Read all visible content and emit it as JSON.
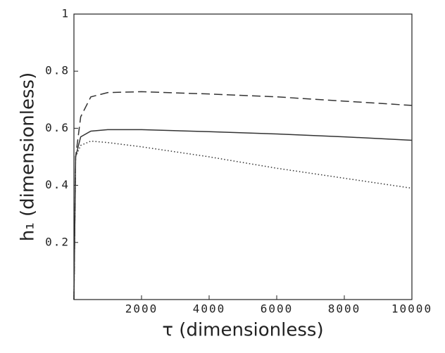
{
  "chart_data": {
    "type": "line",
    "x_label": "τ (dimensionless)",
    "y_label": "h₁ (dimensionless)",
    "x": [
      0,
      50,
      200,
      500,
      1000,
      2000,
      4000,
      6000,
      8000,
      10000
    ],
    "series": [
      {
        "color": "#333333",
        "line_style": "dashed",
        "values": [
          0,
          0.5,
          0.64,
          0.71,
          0.725,
          0.728,
          0.72,
          0.71,
          0.695,
          0.68
        ]
      },
      {
        "color": "#333333",
        "line_style": "solid",
        "values": [
          0,
          0.5,
          0.57,
          0.59,
          0.595,
          0.595,
          0.588,
          0.58,
          0.57,
          0.558
        ]
      },
      {
        "color": "#333333",
        "line_style": "dotted",
        "values": [
          0,
          0.5,
          0.54,
          0.555,
          0.55,
          0.535,
          0.5,
          0.46,
          0.425,
          0.39
        ]
      }
    ],
    "xlim": [
      0,
      10000
    ],
    "xticks": [
      2000,
      4000,
      6000,
      8000,
      10000
    ],
    "ylim": [
      0,
      1
    ],
    "yticks": [
      0.2,
      0.4,
      0.6,
      0.8,
      1
    ],
    "grid": false
  }
}
